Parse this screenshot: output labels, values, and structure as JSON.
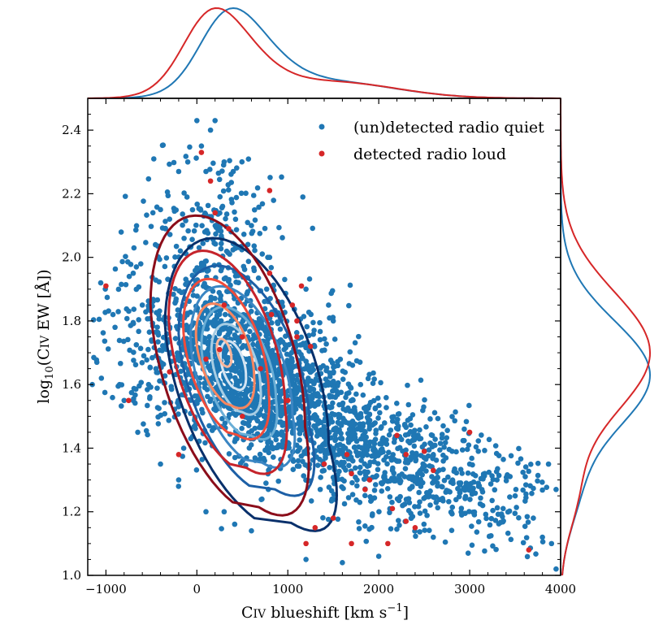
{
  "chart_data": {
    "type": "scatter",
    "xlabel": "C IV blueshift [km s^-1]",
    "ylabel": "log10(C IV EW [Å])",
    "xlim": [
      -1200,
      4000
    ],
    "ylim": [
      1.0,
      2.5
    ],
    "xticks": [
      -1000,
      0,
      1000,
      2000,
      3000,
      4000
    ],
    "yticks": [
      1.0,
      1.2,
      1.4,
      1.6,
      1.8,
      2.0,
      2.2,
      2.4
    ],
    "xtick_labels": [
      "−1000",
      "0",
      "1000",
      "2000",
      "3000",
      "4000"
    ],
    "ytick_labels": [
      "1.0",
      "1.2",
      "1.4",
      "1.6",
      "1.8",
      "2.0",
      "2.2",
      "2.4"
    ],
    "legend_position": "top-right",
    "grid": false,
    "colors": {
      "radio_quiet": "#1f77b4",
      "radio_loud": "#d62728",
      "blue_contours": [
        "#08306b",
        "#1c5fa6",
        "#3b86c3",
        "#6aaed6",
        "#a6cde4",
        "#d3e4f3"
      ],
      "red_contours": [
        "#8b0d1a",
        "#c5242b",
        "#ef4b3a",
        "#f8865f",
        "#fcb59a"
      ]
    },
    "series": [
      {
        "name": "(un)detected radio quiet",
        "color": "#1f77b4",
        "cloud": {
          "count": 2600,
          "points": [
            [
              -1150,
              1.6
            ],
            [
              -1100,
              1.67
            ],
            [
              -1050,
              1.62
            ],
            [
              -900,
              1.78
            ],
            [
              -850,
              1.6
            ],
            [
              -800,
              1.55
            ],
            [
              -700,
              1.95
            ],
            [
              -650,
              1.45
            ],
            [
              -600,
              1.85
            ],
            [
              -400,
              2.15
            ],
            [
              -300,
              2.12
            ],
            [
              -200,
              2.27
            ],
            [
              -100,
              2.3
            ],
            [
              0,
              2.43
            ],
            [
              50,
              2.35
            ],
            [
              100,
              2.27
            ],
            [
              150,
              2.4
            ],
            [
              200,
              2.43
            ],
            [
              300,
              2.3
            ],
            [
              400,
              2.27
            ],
            [
              600,
              2.1
            ],
            [
              800,
              2.0
            ],
            [
              1200,
              1.9
            ],
            [
              1500,
              1.8
            ],
            [
              1800,
              1.6
            ],
            [
              2200,
              1.48
            ],
            [
              2600,
              1.38
            ],
            [
              3000,
              1.35
            ],
            [
              3300,
              1.3
            ],
            [
              3500,
              1.25
            ],
            [
              3700,
              1.18
            ],
            [
              3800,
              1.12
            ],
            [
              3900,
              1.1
            ],
            [
              3950,
              1.27
            ],
            [
              3950,
              1.02
            ],
            [
              2600,
              1.12
            ],
            [
              2000,
              1.06
            ],
            [
              1600,
              1.04
            ],
            [
              1200,
              1.05
            ],
            [
              600,
              1.14
            ],
            [
              300,
              1.2
            ],
            [
              100,
              1.2
            ],
            [
              -200,
              1.3
            ],
            [
              -400,
              1.35
            ],
            [
              -700,
              1.55
            ]
          ]
        }
      },
      {
        "name": "detected radio loud",
        "color": "#d62728",
        "points": [
          [
            -1000,
            1.91
          ],
          [
            -750,
            1.55
          ],
          [
            -200,
            1.38
          ],
          [
            50,
            2.33
          ],
          [
            100,
            1.68
          ],
          [
            150,
            2.24
          ],
          [
            200,
            2.14
          ],
          [
            250,
            1.71
          ],
          [
            300,
            1.85
          ],
          [
            350,
            2.09
          ],
          [
            500,
            1.75
          ],
          [
            700,
            1.65
          ],
          [
            800,
            1.95
          ],
          [
            820,
            1.82
          ],
          [
            800,
            2.21
          ],
          [
            1000,
            1.55
          ],
          [
            1050,
            1.85
          ],
          [
            1100,
            1.8
          ],
          [
            1100,
            1.75
          ],
          [
            1150,
            1.91
          ],
          [
            1200,
            1.1
          ],
          [
            1250,
            1.72
          ],
          [
            1400,
            1.35
          ],
          [
            1500,
            1.18
          ],
          [
            1650,
            1.38
          ],
          [
            1700,
            1.32
          ],
          [
            1700,
            1.1
          ],
          [
            1850,
            1.27
          ],
          [
            1900,
            1.3
          ],
          [
            2100,
            1.1
          ],
          [
            2150,
            1.21
          ],
          [
            2200,
            1.44
          ],
          [
            2300,
            1.17
          ],
          [
            2300,
            1.38
          ],
          [
            2400,
            1.15
          ],
          [
            2500,
            1.39
          ],
          [
            2600,
            1.33
          ],
          [
            3000,
            1.45
          ],
          [
            3650,
            1.08
          ],
          [
            -300,
            1.64
          ],
          [
            500,
            1.5
          ],
          [
            1300,
            1.15
          ]
        ]
      }
    ],
    "density_contours": {
      "radio_quiet": {
        "center": [
          400,
          1.66
        ],
        "levels": 6
      },
      "radio_loud": {
        "center": [
          300,
          1.7
        ],
        "levels": 5
      }
    },
    "marginal_x": {
      "range": [
        -1200,
        4000
      ],
      "radio_quiet": {
        "peak_x": 350
      },
      "radio_loud": {
        "peak_x": 250
      }
    },
    "marginal_y": {
      "range": [
        1.0,
        2.5
      ],
      "radio_quiet": {
        "peak_y": 1.63
      },
      "radio_loud": {
        "peak_y": 1.7
      }
    }
  }
}
